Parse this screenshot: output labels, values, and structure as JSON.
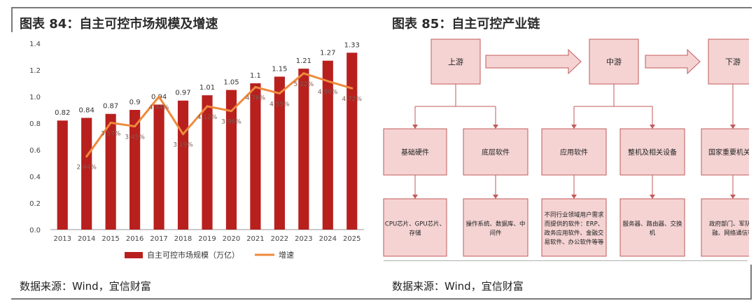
{
  "left_panel": {
    "title": "图表 84：自主可控市场规模及增速",
    "source": "数据来源：Wind，宜信财富"
  },
  "right_panel": {
    "title": "图表 85：自主可控产业链",
    "source": "数据来源：Wind，宜信财富",
    "stages": [
      "上游",
      "中游",
      "下游"
    ],
    "level2": [
      "基础硬件",
      "底层软件",
      "应用软件",
      "整机及相关设备",
      "国家重要机关单"
    ],
    "level3": [
      [
        "CPU芯片、GPU芯片、",
        "存储"
      ],
      [
        "操作系统、数据库、中",
        "间件"
      ],
      [
        "不同行业领域用户需求",
        "而提供的软件：ERP、",
        "政务应用软件、金融交",
        "易软件、办公软件等等"
      ],
      [
        "服务器、路由器、交换",
        "机"
      ],
      [
        "政府部门、军队、",
        "融、网络通信等"
      ]
    ],
    "colors": {
      "box_fill": "#f5d3d3",
      "box_stroke": "#c25a5a",
      "arrow_fill": "#f5d3d3",
      "connector": "#c25a5a"
    }
  },
  "chart_data": {
    "type": "bar",
    "categories": [
      "2013",
      "2014",
      "2015",
      "2016",
      "2017",
      "2018",
      "2019",
      "2020",
      "2021",
      "2022",
      "2023",
      "2024",
      "2025"
    ],
    "series": [
      {
        "name": "自主可控市场规模（万亿）",
        "type": "bar",
        "axis": "left",
        "values": [
          0.82,
          0.84,
          0.87,
          0.9,
          0.94,
          0.97,
          1.01,
          1.05,
          1.1,
          1.15,
          1.21,
          1.27,
          1.33
        ],
        "labels": [
          "0.82",
          "0.84",
          "0.87",
          "0.9",
          "0.94",
          "0.97",
          "1.01",
          "1.05",
          "1.1",
          "1.15",
          "1.21",
          "1.27",
          "1.33"
        ]
      },
      {
        "name": "增速",
        "type": "line",
        "axis": "right",
        "values": [
          null,
          0.0244,
          0.0357,
          0.0345,
          0.0444,
          0.0319,
          0.0412,
          0.0396,
          0.0476,
          0.0455,
          0.0522,
          0.0496,
          0.0472
        ],
        "labels": [
          "",
          "2.44%",
          "3.57%",
          "3.45%",
          "4.44%",
          "3.19%",
          "4.12%",
          "3.96%",
          "4.76%",
          "4.55%",
          "5.22%",
          "4.96%",
          "4.72%"
        ]
      }
    ],
    "yticks": [
      "0.0",
      "0.2",
      "0.4",
      "0.6",
      "0.8",
      "1.0",
      "1.2",
      "1.4"
    ],
    "ylim": [
      0,
      1.4
    ],
    "y2lim": [
      0,
      0.0622
    ],
    "legend_placement": "bottom",
    "grid": false,
    "colors": {
      "bar": "#b8201e",
      "line": "#ee8a3c"
    }
  }
}
